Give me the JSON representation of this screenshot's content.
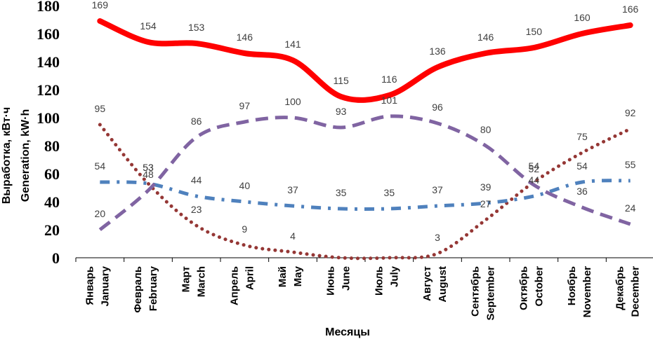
{
  "chart_data": {
    "type": "line",
    "title": "",
    "xlabel": "Месяцы",
    "ylabel_lines": [
      "Выработка, кВт·ч",
      "Generation, kW·h"
    ],
    "ylim": [
      0,
      180
    ],
    "yticks": [
      0,
      20,
      40,
      60,
      80,
      100,
      120,
      140,
      160,
      180
    ],
    "grid": false,
    "legend": "none",
    "categories": [
      {
        "ru": "Январь",
        "en": "January"
      },
      {
        "ru": "Февраль",
        "en": "February"
      },
      {
        "ru": "Март",
        "en": "March"
      },
      {
        "ru": "Апрель",
        "en": "April"
      },
      {
        "ru": "Май",
        "en": "May"
      },
      {
        "ru": "Июнь",
        "en": "June"
      },
      {
        "ru": "Июль",
        "en": "July"
      },
      {
        "ru": "Август",
        "en": "August"
      },
      {
        "ru": "Сентябрь",
        "en": "September"
      },
      {
        "ru": "Октябрь",
        "en": "October"
      },
      {
        "ru": "Ноябрь",
        "en": "November"
      },
      {
        "ru": "Декабрь",
        "en": "December"
      }
    ],
    "series": [
      {
        "color": "#ff0000",
        "style": "solid",
        "values": [
          169,
          154,
          153,
          146,
          141,
          115,
          116,
          136,
          146,
          150,
          160,
          166
        ]
      },
      {
        "color": "#8064a2",
        "style": "dashed",
        "values": [
          20,
          48,
          86,
          97,
          100,
          93,
          101,
          96,
          80,
          52,
          36,
          24
        ]
      },
      {
        "color": "#4f81bd",
        "style": "dashdot",
        "values": [
          54,
          53,
          44,
          40,
          37,
          35,
          35,
          37,
          39,
          44,
          54,
          55
        ]
      },
      {
        "color": "#953735",
        "style": "dotted",
        "values": [
          95,
          53,
          23,
          9,
          4,
          0,
          0,
          3,
          27,
          54,
          75,
          92
        ]
      }
    ]
  }
}
